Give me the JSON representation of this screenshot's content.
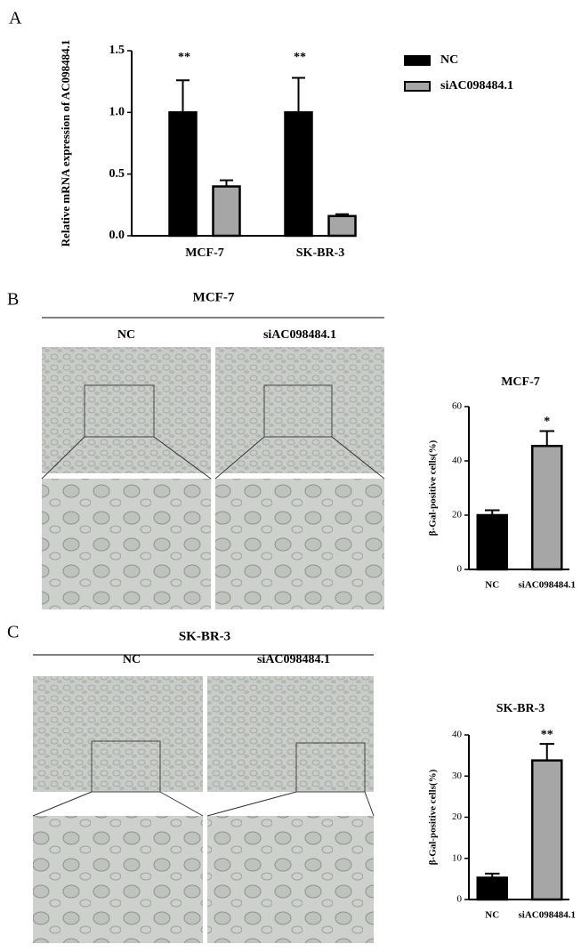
{
  "panel_labels": [
    "A",
    "B",
    "C"
  ],
  "image_panels": [
    {
      "title": "MCF-7",
      "columns": [
        "NC",
        "siAC098484.1"
      ]
    },
    {
      "title": "SK-BR-3",
      "columns": [
        "NC",
        "siAC098484.1"
      ]
    }
  ],
  "chart_data": [
    {
      "type": "bar",
      "ylabel": "Relative mRNA expression of AC098484.1",
      "categories": [
        "MCF-7",
        "SK-BR-3"
      ],
      "series": [
        {
          "name": "NC",
          "color": "#000000",
          "values": [
            1.0,
            1.0
          ],
          "errors": [
            0.26,
            0.28
          ]
        },
        {
          "name": "siAC098484.1",
          "color": "#a6a6a6",
          "values": [
            0.4,
            0.16
          ],
          "errors": [
            0.05,
            0.015
          ]
        }
      ],
      "annotations": [
        "**",
        "**"
      ],
      "ylim": [
        0,
        1.5
      ],
      "yticks": [
        {
          "value": 0,
          "label": "0.0"
        },
        {
          "value": 0.5,
          "label": "0.5"
        },
        {
          "value": 1.0,
          "label": "1.0"
        },
        {
          "value": 1.5,
          "label": "1.5"
        }
      ],
      "legend": "right"
    },
    {
      "type": "bar",
      "title": "MCF-7",
      "ylabel": "β-Gal-positive cells(%)",
      "categories": [
        "NC",
        "siAC098484.1"
      ],
      "values": [
        20,
        45.5
      ],
      "errors": [
        1.8,
        5.5
      ],
      "colors": [
        "#000000",
        "#a6a6a6"
      ],
      "annotations": [
        null,
        "*"
      ],
      "ylim": [
        0,
        60
      ],
      "yticks": [
        0,
        20,
        40,
        60
      ]
    },
    {
      "type": "bar",
      "title": "SK-BR-3",
      "ylabel": "β-Gal-positive cells(%)",
      "categories": [
        "NC",
        "siAC098484.1"
      ],
      "values": [
        5.3,
        33.8
      ],
      "errors": [
        1,
        4
      ],
      "colors": [
        "#000000",
        "#a6a6a6"
      ],
      "annotations": [
        null,
        "**"
      ],
      "ylim": [
        0,
        40
      ],
      "yticks": [
        0,
        10,
        20,
        30,
        40
      ]
    }
  ]
}
